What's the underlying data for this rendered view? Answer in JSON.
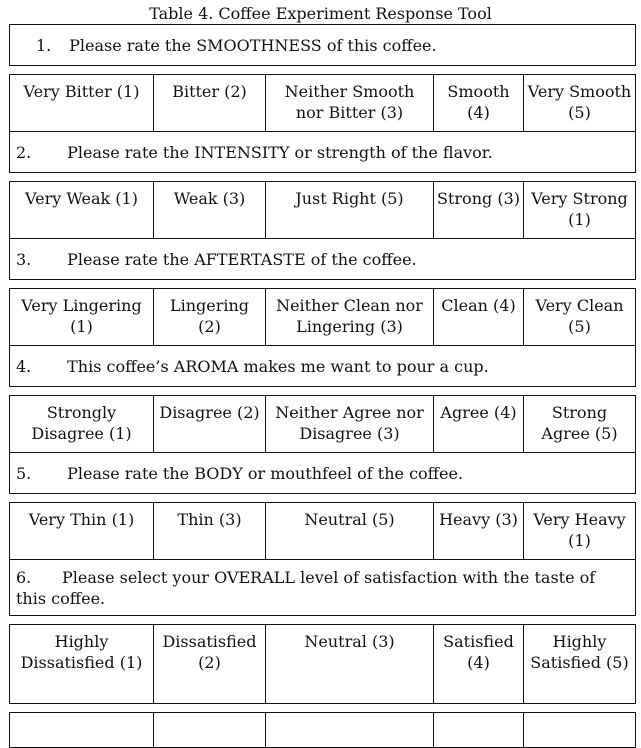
{
  "caption": "Table 4. Coffee Experiment Response Tool",
  "questions": [
    {
      "number": "1.",
      "text": "Please rate the SMOOTHNESS of this coffee.",
      "options": [
        "Very Bitter (1)",
        "Bitter (2)",
        "Neither Smooth nor Bitter (3)",
        "Smooth (4)",
        "Very Smooth (5)"
      ]
    },
    {
      "number": "2.",
      "text": "Please rate the INTENSITY or strength of the flavor.",
      "options": [
        "Very Weak (1)",
        "Weak (3)",
        "Just Right (5)",
        "Strong (3)",
        "Very Strong (1)"
      ]
    },
    {
      "number": "3.",
      "text": "Please rate the AFTERTASTE of the coffee.",
      "options": [
        "Very Lingering (1)",
        "Lingering (2)",
        "Neither Clean nor Lingering (3)",
        "Clean (4)",
        "Very Clean (5)"
      ]
    },
    {
      "number": "4.",
      "text": "This coffee’s AROMA makes me want to pour a cup.",
      "options": [
        "Strongly Disagree (1)",
        "Disagree (2)",
        "Neither Agree nor Disagree (3)",
        "Agree (4)",
        "Strong Agree (5)"
      ]
    },
    {
      "number": "5.",
      "text": "Please rate the BODY or mouthfeel of the coffee.",
      "options": [
        "Very Thin (1)",
        "Thin (3)",
        "Neutral (5)",
        "Heavy (3)",
        "Very Heavy (1)"
      ]
    },
    {
      "number": "6.",
      "text": "Please select your OVERALL level of satisfaction with the taste of this coffee.",
      "options": [
        "Highly Dissatisfied (1)",
        "Dissatisfied (2)",
        "Neutral (3)",
        "Satisfied (4)",
        "Highly Satisfied (5)"
      ]
    }
  ]
}
